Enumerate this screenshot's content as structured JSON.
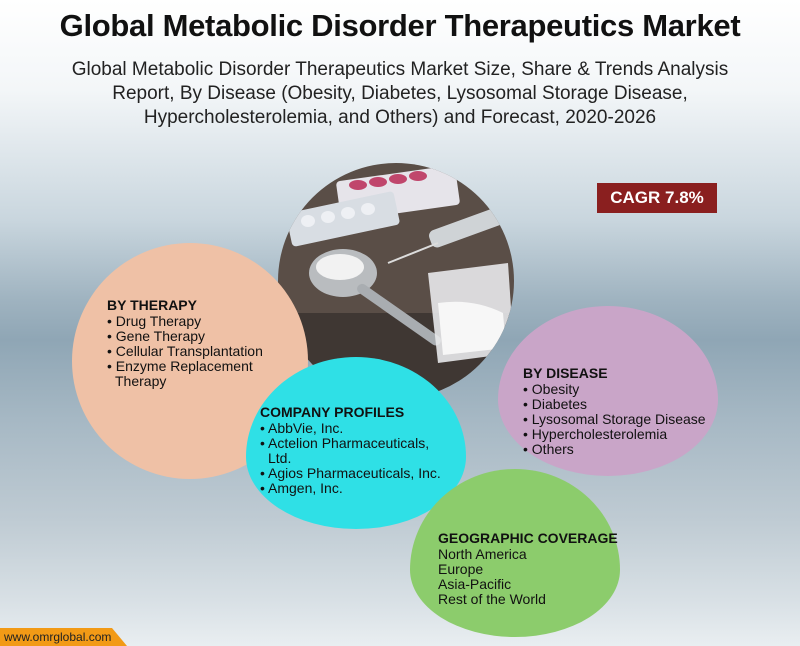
{
  "title": "Global Metabolic Disorder Therapeutics Market",
  "subtitle": "Global Metabolic Disorder Therapeutics Market Size, Share & Trends Analysis Report, By Disease (Obesity, Diabetes, Lysosomal Storage Disease, Hypercholesterolemia, and Others) and Forecast, 2020-2026",
  "cagr": "CAGR 7.8%",
  "by_therapy": {
    "heading": "BY THERAPY",
    "items": [
      "• Drug Therapy",
      "• Gene Therapy",
      "• Cellular Transplantation",
      "• Enzyme Replacement",
      "Therapy"
    ]
  },
  "by_disease": {
    "heading": "BY DISEASE",
    "items": [
      "• Obesity",
      "• Diabetes",
      "• Lysosomal Storage Disease",
      "• Hypercholesterolemia",
      "• Others"
    ]
  },
  "company_profiles": {
    "heading": "COMPANY PROFILES",
    "items": [
      "• AbbVie, Inc.",
      "• Actelion Pharmaceuticals,",
      "Ltd.",
      "• Agios Pharmaceuticals, Inc.",
      "• Amgen, Inc."
    ]
  },
  "geographic_coverage": {
    "heading": "GEOGRAPHIC COVERAGE",
    "items": [
      "North America",
      "Europe",
      "Asia-Pacific",
      "Rest of the World"
    ]
  },
  "footer": "www.omrglobal.com",
  "colors": {
    "cagr_bg": "#8a1f1f",
    "therapy": "#efc1a6",
    "disease": "#c9a5c8",
    "company": "#2fe0e6",
    "geo": "#8ccc6c",
    "footer": "#f29a16"
  }
}
